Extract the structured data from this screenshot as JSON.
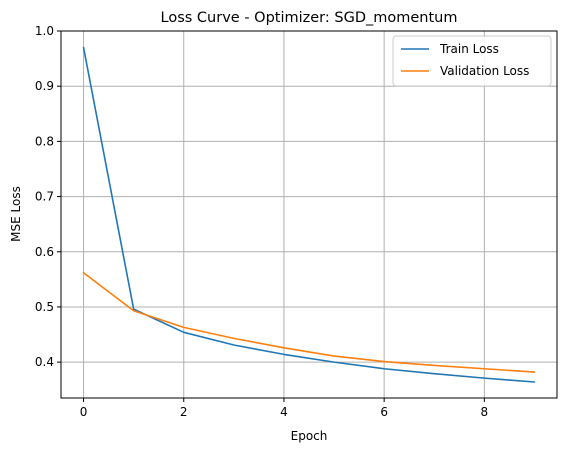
{
  "chart_data": {
    "type": "line",
    "title": "Loss Curve - Optimizer: SGD_momentum",
    "xlabel": "Epoch",
    "ylabel": "MSE Loss",
    "xlim": [
      -0.45,
      9.45
    ],
    "ylim": [
      0.335,
      1.0
    ],
    "xticks": [
      0,
      2,
      4,
      6,
      8
    ],
    "yticks": [
      0.4,
      0.5,
      0.6,
      0.7,
      0.8,
      0.9,
      1.0
    ],
    "grid": true,
    "legend_position": "top-right",
    "x": [
      0,
      1,
      2,
      3,
      4,
      5,
      6,
      7,
      8,
      9
    ],
    "series": [
      {
        "name": "Train Loss",
        "color": "#1f77b4",
        "values": [
          0.97,
          0.496,
          0.454,
          0.431,
          0.414,
          0.4,
          0.388,
          0.379,
          0.371,
          0.364
        ]
      },
      {
        "name": "Validation Loss",
        "color": "#ff7f0e",
        "values": [
          0.562,
          0.493,
          0.463,
          0.443,
          0.426,
          0.411,
          0.401,
          0.394,
          0.388,
          0.382
        ]
      }
    ]
  }
}
